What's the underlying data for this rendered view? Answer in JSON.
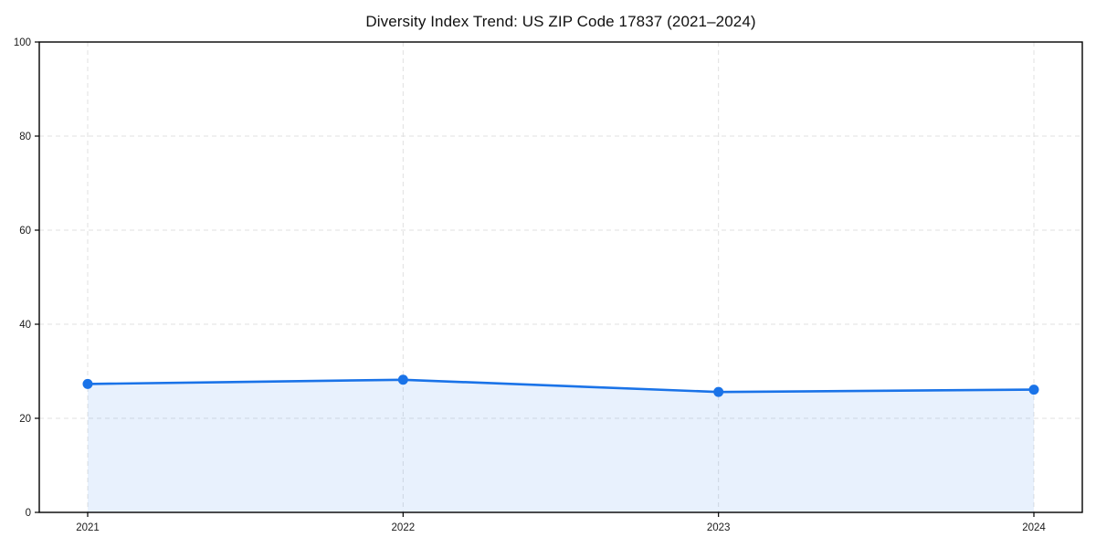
{
  "chart_data": {
    "type": "line",
    "title": "Diversity Index Trend: US ZIP Code 17837 (2021–2024)",
    "x": [
      "2021",
      "2022",
      "2023",
      "2024"
    ],
    "series": [
      {
        "name": "Diversity Index",
        "values": [
          27.3,
          28.2,
          25.6,
          26.1
        ]
      }
    ],
    "xlabel": "",
    "ylabel": "",
    "ylim": [
      0,
      100
    ],
    "yticks": [
      0,
      20,
      40,
      60,
      80,
      100
    ],
    "grid": "dashed-both-axes",
    "legend": "none",
    "area_fill": true,
    "colors": {
      "line": "#1a73e8",
      "marker": "#1a73e8",
      "fill_opacity": "0.1",
      "grid": "#e0e0e0",
      "axis": "#000000",
      "tick_label": "#1a1a1a",
      "background": "#ffffff"
    }
  }
}
